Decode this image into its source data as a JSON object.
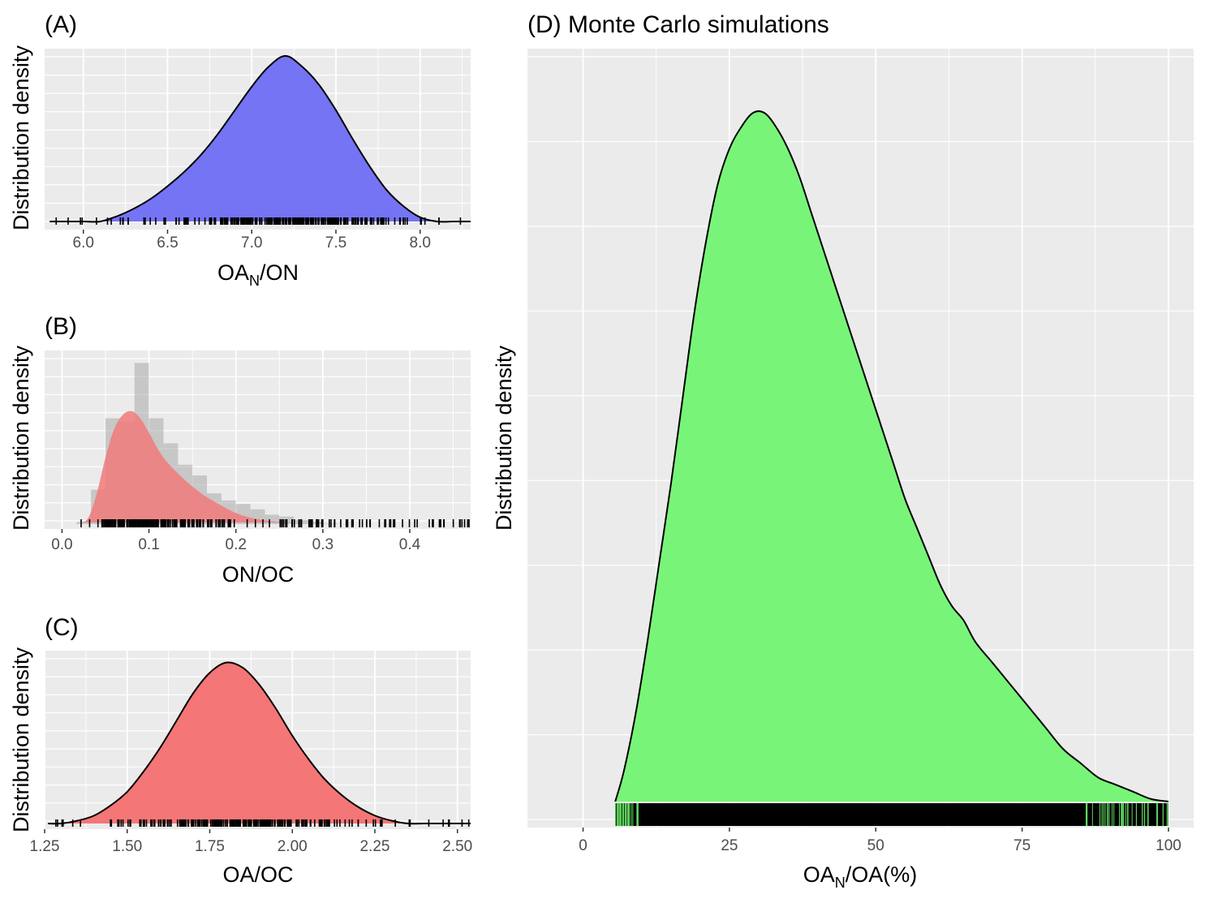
{
  "chart_data": [
    {
      "panel": "(A)",
      "type": "area",
      "xlabel_main": "OA",
      "xlabel_sub": "N",
      "xlabel_rest": "/ON",
      "ylabel": "Distribution density",
      "xlim": [
        5.77,
        8.3
      ],
      "xticks": [
        "6.0",
        "6.5",
        "7.0",
        "7.5",
        "8.0"
      ],
      "fill": "#7474f5",
      "density": {
        "x": [
          5.8,
          5.9,
          6.0,
          6.1,
          6.2,
          6.3,
          6.4,
          6.5,
          6.6,
          6.7,
          6.8,
          6.9,
          7.0,
          7.1,
          7.2,
          7.3,
          7.4,
          7.5,
          7.6,
          7.7,
          7.8,
          7.9,
          8.0,
          8.1,
          8.2,
          8.3
        ],
        "y": [
          0.01,
          0.016,
          0.027,
          0.045,
          0.074,
          0.116,
          0.17,
          0.24,
          0.32,
          0.415,
          0.53,
          0.66,
          0.79,
          0.9,
          0.96,
          0.9,
          0.8,
          0.66,
          0.5,
          0.35,
          0.22,
          0.13,
          0.068,
          0.033,
          0.015,
          0.006
        ]
      }
    },
    {
      "panel": "(B)",
      "type": "area",
      "xlabel": "ON/OC",
      "ylabel": "Distribution density",
      "xlim": [
        -0.02,
        0.47
      ],
      "xticks": [
        "0.0",
        "0.1",
        "0.2",
        "0.3",
        "0.4"
      ],
      "fill": "#f07a7a",
      "histogram": {
        "bin_width": 0.0167,
        "x": [
          0.0,
          0.0167,
          0.0333,
          0.05,
          0.0667,
          0.0833,
          0.1,
          0.1167,
          0.1333,
          0.15,
          0.1667,
          0.1833,
          0.2,
          0.2167,
          0.2333,
          0.25,
          0.2667,
          0.2833,
          0.3,
          0.3167,
          0.3333,
          0.35
        ],
        "y": [
          0.02,
          0.04,
          0.22,
          0.62,
          0.6,
          0.93,
          0.62,
          0.48,
          0.36,
          0.3,
          0.2,
          0.16,
          0.14,
          0.11,
          0.08,
          0.07,
          0.05,
          0.04,
          0.03,
          0.025,
          0.02,
          0.012
        ]
      },
      "density": {
        "x": [
          0.02,
          0.03,
          0.04,
          0.05,
          0.06,
          0.07,
          0.08,
          0.09,
          0.1,
          0.11,
          0.12,
          0.14,
          0.16,
          0.18,
          0.2,
          0.22,
          0.25,
          0.3,
          0.35,
          0.4,
          0.47
        ],
        "y": [
          0.0,
          0.06,
          0.2,
          0.4,
          0.56,
          0.64,
          0.66,
          0.62,
          0.54,
          0.45,
          0.38,
          0.28,
          0.2,
          0.14,
          0.09,
          0.06,
          0.04,
          0.02,
          0.01,
          0.004,
          0.0
        ]
      }
    },
    {
      "panel": "(C)",
      "type": "area",
      "xlabel": "OA/OC",
      "ylabel": "Distribution density",
      "xlim": [
        1.25,
        2.54
      ],
      "xticks": [
        "1.25",
        "1.50",
        "1.75",
        "2.00",
        "2.25",
        "2.50"
      ],
      "fill": "#f47676",
      "density": {
        "x": [
          1.26,
          1.3,
          1.35,
          1.4,
          1.45,
          1.5,
          1.55,
          1.6,
          1.65,
          1.7,
          1.75,
          1.8,
          1.85,
          1.9,
          1.95,
          2.0,
          2.05,
          2.1,
          2.15,
          2.2,
          2.25,
          2.3,
          2.35,
          2.4,
          2.45,
          2.5,
          2.54
        ],
        "y": [
          0.02,
          0.03,
          0.05,
          0.08,
          0.14,
          0.22,
          0.34,
          0.48,
          0.64,
          0.8,
          0.92,
          0.98,
          0.95,
          0.85,
          0.71,
          0.55,
          0.41,
          0.29,
          0.2,
          0.13,
          0.08,
          0.05,
          0.03,
          0.02,
          0.01,
          0.006,
          0.003
        ]
      }
    },
    {
      "panel": "(D) Monte Carlo simulations",
      "type": "area",
      "xlabel_main": "OA",
      "xlabel_sub": "N",
      "xlabel_rest": "/OA(%)",
      "ylabel": "Distribution density",
      "xlim": [
        -9.5,
        104.3
      ],
      "xticks": [
        "0",
        "25",
        "50",
        "75",
        "100"
      ],
      "fill": "#78f578",
      "density": {
        "x": [
          5.5,
          7,
          9,
          11,
          13,
          15,
          17,
          19,
          21,
          23,
          25,
          27,
          29,
          31,
          33,
          35,
          37,
          39,
          41,
          43,
          45,
          47,
          49,
          51,
          53,
          55,
          57,
          59,
          61,
          63,
          65,
          67,
          70,
          73,
          76,
          79,
          82,
          85,
          88,
          91,
          94,
          97,
          100
        ],
        "y": [
          0.03,
          0.08,
          0.16,
          0.26,
          0.37,
          0.48,
          0.6,
          0.72,
          0.82,
          0.9,
          0.95,
          0.98,
          1.0,
          1.0,
          0.98,
          0.95,
          0.91,
          0.86,
          0.81,
          0.76,
          0.71,
          0.66,
          0.61,
          0.56,
          0.51,
          0.46,
          0.42,
          0.38,
          0.34,
          0.31,
          0.29,
          0.26,
          0.23,
          0.2,
          0.17,
          0.14,
          0.11,
          0.09,
          0.07,
          0.06,
          0.05,
          0.04,
          0.03
        ]
      }
    }
  ]
}
